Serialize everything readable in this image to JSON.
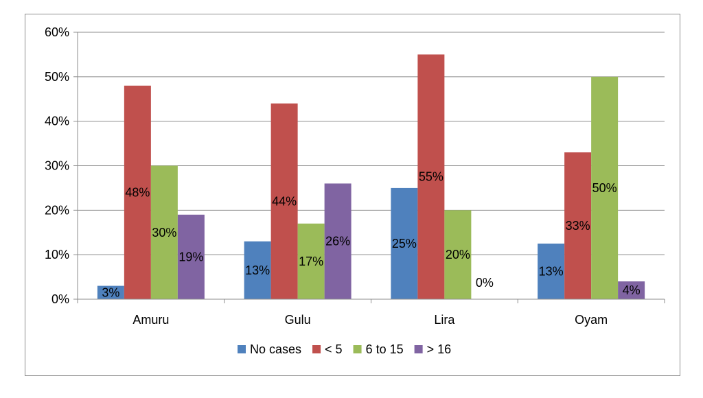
{
  "chart_data": {
    "type": "bar",
    "categories": [
      "Amuru",
      "Gulu",
      "Lira",
      "Oyam"
    ],
    "series": [
      {
        "name": "No cases",
        "color": "#4f81bd",
        "values": [
          3,
          13,
          25,
          12.5
        ],
        "labels": [
          "3%",
          "13%",
          "25%",
          "13%"
        ]
      },
      {
        "name": "< 5",
        "color": "#c0504d",
        "values": [
          48,
          44,
          55,
          33
        ],
        "labels": [
          "48%",
          "44%",
          "55%",
          "33%"
        ]
      },
      {
        "name": "6 to 15",
        "color": "#9bbb59",
        "values": [
          30,
          17,
          20,
          50
        ],
        "labels": [
          "30%",
          "17%",
          "20%",
          "50%"
        ]
      },
      {
        "name": "> 16",
        "color": "#8064a2",
        "values": [
          19,
          26,
          0,
          4
        ],
        "labels": [
          "19%",
          "26%",
          "0%",
          "4%"
        ]
      }
    ],
    "y_ticks": [
      "0%",
      "10%",
      "20%",
      "30%",
      "40%",
      "50%",
      "60%"
    ],
    "ylim": [
      0,
      60
    ],
    "grid": true,
    "legend_position": "bottom"
  }
}
